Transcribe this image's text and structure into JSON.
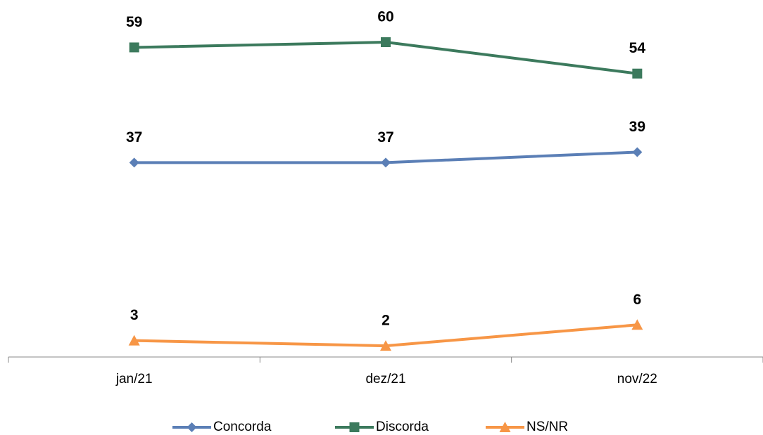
{
  "chart_data": {
    "type": "line",
    "categories": [
      "jan/21",
      "dez/21",
      "nov/22"
    ],
    "series": [
      {
        "name": "Concorda",
        "color": "#5b7fb6",
        "marker": "diamond",
        "values": [
          37,
          37,
          39
        ]
      },
      {
        "name": "Discorda",
        "color": "#3c7a5d",
        "marker": "square",
        "values": [
          59,
          60,
          54
        ]
      },
      {
        "name": "NS/NR",
        "color": "#f79646",
        "marker": "triangle",
        "values": [
          3,
          2,
          6
        ]
      }
    ],
    "ylim": [
      0,
      65
    ],
    "legend": "bottom"
  }
}
